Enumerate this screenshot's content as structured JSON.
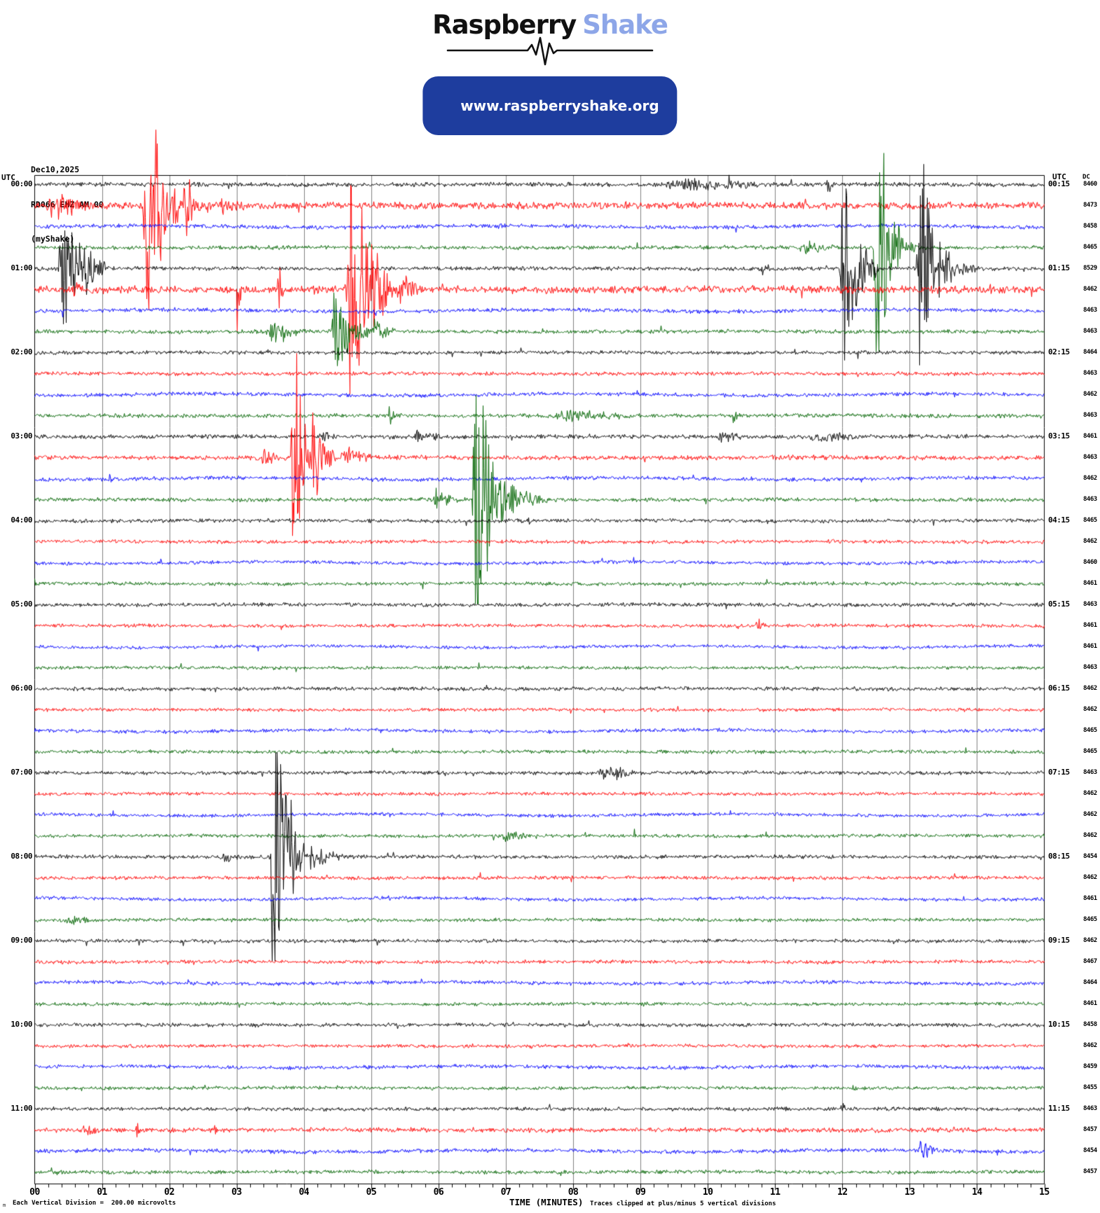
{
  "header": {
    "logo_primary": "Raspberry",
    "logo_secondary": "Shake",
    "url": "www.raspberryshake.org"
  },
  "station": {
    "date": "Dec10,2025",
    "id": "RD066 EHZ AM 00",
    "network": "(myShake)"
  },
  "axes": {
    "left_unit": "UTC",
    "right_unit": "UTC",
    "dc_header": "DC",
    "x_title": "TIME (MINUTES)",
    "x_ticks": [
      "00",
      "01",
      "02",
      "03",
      "04",
      "05",
      "06",
      "07",
      "08",
      "09",
      "10",
      "11",
      "12",
      "13",
      "14",
      "15"
    ],
    "footer_left": "Each Vertical Division =  200.00 microvolts",
    "footer_right": "Traces clipped at plus/minus 5 vertical divisions",
    "footer_mark": "m"
  },
  "colors": {
    "trace_map": {
      "black": "#000000",
      "red": "#ff0000",
      "blue": "#0000ff",
      "green": "#006400"
    },
    "grid": "#808080",
    "axis": "#000000",
    "logo_accent": "#8da6e8",
    "pill_bg": "#1e3d9e",
    "pill_text": "#ffffff"
  },
  "chart_data": {
    "type": "line",
    "subtype": "helicorder-seismogram",
    "x_range": [
      0,
      15
    ],
    "minutes_per_row": 15,
    "rows_per_hour": 4,
    "clip_divisions": 5,
    "microvolts_per_division": 200.0,
    "rows": [
      {
        "left_label": "00:00",
        "right_label": "00:15",
        "color": "black",
        "dc": 8460,
        "noise": 2.2,
        "events": [
          [
            9.2,
            12.6,
            7
          ],
          [
            10.4,
            11.1,
            10
          ],
          [
            11.75,
            11.95,
            16
          ]
        ]
      },
      {
        "left_label": "",
        "right_label": "",
        "color": "red",
        "dc": 8473,
        "noise": 3.5,
        "events": [
          [
            0.1,
            1.6,
            15
          ],
          [
            1.6,
            2.15,
            170
          ],
          [
            2.15,
            2.7,
            40
          ],
          [
            2.7,
            3.6,
            12
          ],
          [
            12.55,
            12.95,
            6
          ]
        ]
      },
      {
        "left_label": "",
        "right_label": "",
        "color": "blue",
        "dc": 8458,
        "noise": 2.0,
        "events": [
          [
            6.8,
            7.4,
            4
          ]
        ]
      },
      {
        "left_label": "",
        "right_label": "",
        "color": "green",
        "dc": 8465,
        "noise": 2.0,
        "events": [
          [
            11.3,
            12.4,
            8
          ],
          [
            12.45,
            12.9,
            200
          ],
          [
            12.9,
            13.3,
            10
          ]
        ]
      },
      {
        "left_label": "01:00",
        "right_label": "01:15",
        "color": "black",
        "dc": 8529,
        "noise": 2.0,
        "events": [
          [
            0.35,
            1.05,
            120
          ],
          [
            10.7,
            11.4,
            7
          ],
          [
            11.95,
            12.55,
            110
          ],
          [
            13.1,
            13.45,
            300
          ],
          [
            13.45,
            14.2,
            20
          ]
        ]
      },
      {
        "left_label": "",
        "right_label": "",
        "color": "red",
        "dc": 8462,
        "noise": 3.8,
        "events": [
          [
            0.55,
            0.9,
            12
          ],
          [
            3.0,
            3.1,
            60
          ],
          [
            3.6,
            3.75,
            35
          ],
          [
            4.6,
            5.35,
            190
          ],
          [
            5.35,
            5.9,
            25
          ]
        ]
      },
      {
        "left_label": "",
        "right_label": "",
        "color": "blue",
        "dc": 8463,
        "noise": 2.0,
        "events": []
      },
      {
        "left_label": "",
        "right_label": "",
        "color": "green",
        "dc": 8463,
        "noise": 2.0,
        "events": [
          [
            3.4,
            4.4,
            12
          ],
          [
            4.4,
            5.0,
            55
          ],
          [
            5.0,
            5.5,
            15
          ]
        ]
      },
      {
        "left_label": "02:00",
        "right_label": "02:15",
        "color": "black",
        "dc": 8464,
        "noise": 1.9,
        "events": [
          [
            4.6,
            4.9,
            5
          ]
        ]
      },
      {
        "left_label": "",
        "right_label": "",
        "color": "red",
        "dc": 8463,
        "noise": 1.9,
        "events": []
      },
      {
        "left_label": "",
        "right_label": "",
        "color": "blue",
        "dc": 8462,
        "noise": 1.9,
        "events": []
      },
      {
        "left_label": "",
        "right_label": "",
        "color": "green",
        "dc": 8463,
        "noise": 2.0,
        "events": [
          [
            5.25,
            5.45,
            10
          ],
          [
            7.6,
            10.4,
            7
          ],
          [
            10.35,
            10.6,
            9
          ]
        ]
      },
      {
        "left_label": "03:00",
        "right_label": "03:15",
        "color": "black",
        "dc": 8461,
        "noise": 2.1,
        "events": [
          [
            4.2,
            4.85,
            7
          ],
          [
            5.6,
            6.4,
            9
          ],
          [
            10.1,
            10.9,
            8
          ],
          [
            11.4,
            13.6,
            6
          ]
        ]
      },
      {
        "left_label": "",
        "right_label": "",
        "color": "red",
        "dc": 8463,
        "noise": 2.3,
        "events": [
          [
            3.35,
            3.8,
            12
          ],
          [
            3.8,
            4.1,
            200
          ],
          [
            4.1,
            4.5,
            60
          ],
          [
            4.5,
            5.3,
            15
          ]
        ]
      },
      {
        "left_label": "",
        "right_label": "",
        "color": "blue",
        "dc": 8462,
        "noise": 1.9,
        "events": [
          [
            1.1,
            1.2,
            9
          ]
        ]
      },
      {
        "left_label": "",
        "right_label": "",
        "color": "green",
        "dc": 8463,
        "noise": 2.0,
        "events": [
          [
            5.9,
            6.5,
            12
          ],
          [
            6.5,
            7.0,
            200
          ],
          [
            7.0,
            7.8,
            20
          ]
        ]
      },
      {
        "left_label": "04:00",
        "right_label": "04:15",
        "color": "black",
        "dc": 8465,
        "noise": 1.9,
        "events": [
          [
            7.3,
            7.6,
            4
          ]
        ]
      },
      {
        "left_label": "",
        "right_label": "",
        "color": "red",
        "dc": 8462,
        "noise": 1.8,
        "events": []
      },
      {
        "left_label": "",
        "right_label": "",
        "color": "blue",
        "dc": 8460,
        "noise": 1.8,
        "events": []
      },
      {
        "left_label": "",
        "right_label": "",
        "color": "green",
        "dc": 8461,
        "noise": 1.8,
        "events": []
      },
      {
        "left_label": "05:00",
        "right_label": "05:15",
        "color": "black",
        "dc": 8463,
        "noise": 1.9,
        "events": []
      },
      {
        "left_label": "",
        "right_label": "",
        "color": "red",
        "dc": 8461,
        "noise": 1.8,
        "events": [
          [
            10.7,
            11.05,
            8
          ]
        ]
      },
      {
        "left_label": "",
        "right_label": "",
        "color": "blue",
        "dc": 8461,
        "noise": 1.7,
        "events": []
      },
      {
        "left_label": "",
        "right_label": "",
        "color": "green",
        "dc": 8463,
        "noise": 1.7,
        "events": []
      },
      {
        "left_label": "06:00",
        "right_label": "06:15",
        "color": "black",
        "dc": 8462,
        "noise": 1.9,
        "events": []
      },
      {
        "left_label": "",
        "right_label": "",
        "color": "red",
        "dc": 8462,
        "noise": 1.7,
        "events": []
      },
      {
        "left_label": "",
        "right_label": "",
        "color": "blue",
        "dc": 8465,
        "noise": 1.8,
        "events": []
      },
      {
        "left_label": "",
        "right_label": "",
        "color": "green",
        "dc": 8465,
        "noise": 1.8,
        "events": []
      },
      {
        "left_label": "07:00",
        "right_label": "07:15",
        "color": "black",
        "dc": 8463,
        "noise": 1.9,
        "events": [
          [
            8.3,
            9.7,
            7
          ],
          [
            8.6,
            8.9,
            12
          ]
        ]
      },
      {
        "left_label": "",
        "right_label": "",
        "color": "red",
        "dc": 8462,
        "noise": 1.7,
        "events": []
      },
      {
        "left_label": "",
        "right_label": "",
        "color": "blue",
        "dc": 8462,
        "noise": 1.7,
        "events": []
      },
      {
        "left_label": "",
        "right_label": "",
        "color": "green",
        "dc": 8462,
        "noise": 1.8,
        "events": [
          [
            6.9,
            7.7,
            8
          ],
          [
            8.9,
            9.0,
            16
          ]
        ]
      },
      {
        "left_label": "08:00",
        "right_label": "08:15",
        "color": "black",
        "dc": 8454,
        "noise": 1.9,
        "events": [
          [
            2.7,
            3.5,
            7
          ],
          [
            3.5,
            4.0,
            200
          ],
          [
            4.0,
            4.9,
            14
          ]
        ]
      },
      {
        "left_label": "",
        "right_label": "",
        "color": "red",
        "dc": 8462,
        "noise": 1.8,
        "events": []
      },
      {
        "left_label": "",
        "right_label": "",
        "color": "blue",
        "dc": 8461,
        "noise": 1.7,
        "events": [
          [
            5.25,
            5.35,
            6
          ]
        ]
      },
      {
        "left_label": "",
        "right_label": "",
        "color": "green",
        "dc": 8465,
        "noise": 1.8,
        "events": [
          [
            0.4,
            1.2,
            7
          ]
        ]
      },
      {
        "left_label": "09:00",
        "right_label": "09:15",
        "color": "black",
        "dc": 8462,
        "noise": 1.8,
        "events": []
      },
      {
        "left_label": "",
        "right_label": "",
        "color": "red",
        "dc": 8467,
        "noise": 1.8,
        "events": []
      },
      {
        "left_label": "",
        "right_label": "",
        "color": "blue",
        "dc": 8464,
        "noise": 1.9,
        "events": []
      },
      {
        "left_label": "",
        "right_label": "",
        "color": "green",
        "dc": 8461,
        "noise": 1.7,
        "events": []
      },
      {
        "left_label": "10:00",
        "right_label": "10:15",
        "color": "black",
        "dc": 8458,
        "noise": 1.9,
        "events": []
      },
      {
        "left_label": "",
        "right_label": "",
        "color": "red",
        "dc": 8462,
        "noise": 1.7,
        "events": []
      },
      {
        "left_label": "",
        "right_label": "",
        "color": "blue",
        "dc": 8459,
        "noise": 1.9,
        "events": [
          [
            9.4,
            9.8,
            4
          ]
        ]
      },
      {
        "left_label": "",
        "right_label": "",
        "color": "green",
        "dc": 8455,
        "noise": 1.7,
        "events": [
          [
            12.15,
            12.25,
            7
          ]
        ]
      },
      {
        "left_label": "11:00",
        "right_label": "11:15",
        "color": "black",
        "dc": 8463,
        "noise": 1.9,
        "events": [
          [
            11.95,
            12.25,
            6
          ]
        ]
      },
      {
        "left_label": "",
        "right_label": "",
        "color": "red",
        "dc": 8457,
        "noise": 2.3,
        "events": [
          [
            0.6,
            1.4,
            7
          ],
          [
            1.5,
            1.56,
            28
          ],
          [
            2.65,
            2.75,
            10
          ],
          [
            3.15,
            3.25,
            8
          ]
        ]
      },
      {
        "left_label": "",
        "right_label": "",
        "color": "blue",
        "dc": 8454,
        "noise": 2.0,
        "events": [
          [
            13.1,
            13.55,
            14
          ]
        ]
      },
      {
        "left_label": "",
        "right_label": "",
        "color": "green",
        "dc": 8457,
        "noise": 1.9,
        "events": [
          [
            0.2,
            0.7,
            6
          ]
        ]
      }
    ]
  }
}
